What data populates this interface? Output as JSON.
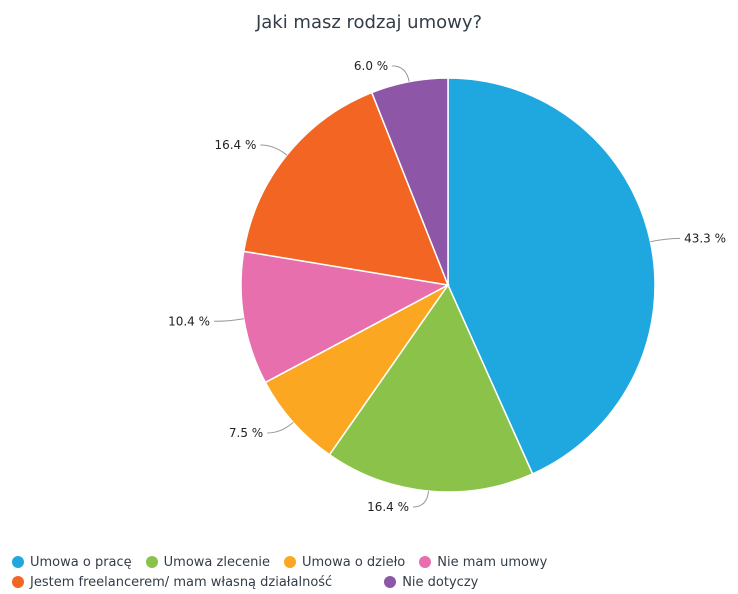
{
  "chart_data": {
    "type": "pie",
    "title": "Jaki masz rodzaj umowy?",
    "slices": [
      {
        "name": "Umowa o pracę",
        "value": 43.3,
        "label": "43.3 %",
        "color": "#1fa8e0"
      },
      {
        "name": "Umowa zlecenie",
        "value": 16.4,
        "label": "16.4 %",
        "color": "#8bc34a"
      },
      {
        "name": "Umowa o dzieło",
        "value": 7.5,
        "label": "7.5 %",
        "color": "#fba722"
      },
      {
        "name": "Nie mam umowy",
        "value": 10.4,
        "label": "10.4 %",
        "color": "#e76fae"
      },
      {
        "name": "Jestem freelancerem/ mam własną działalność",
        "value": 16.4,
        "label": "16.4 %",
        "color": "#f26522"
      },
      {
        "name": "Nie dotyczy",
        "value": 6.0,
        "label": "6.0 %",
        "color": "#8e56a6"
      }
    ],
    "legend_position": "bottom"
  }
}
